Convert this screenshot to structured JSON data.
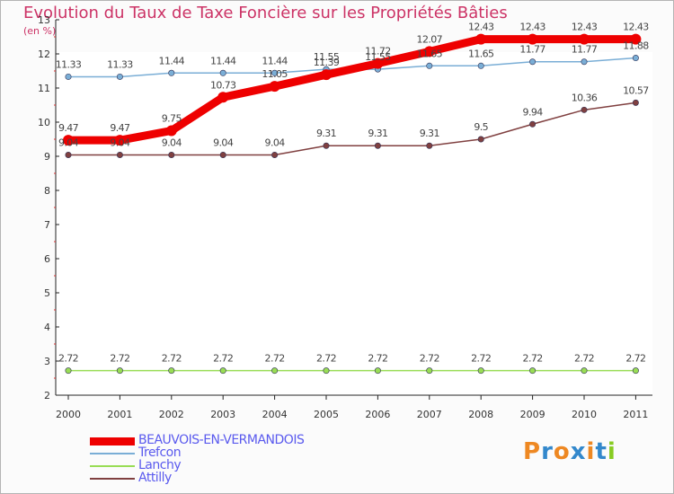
{
  "chart_data": {
    "type": "line",
    "title": "Evolution du Taux de Taxe Foncière sur les Propriétés Bâties",
    "ylabel": "(en %)",
    "x": [
      "2000",
      "2001",
      "2002",
      "2003",
      "2004",
      "2005",
      "2006",
      "2007",
      "2008",
      "2009",
      "2010",
      "2011"
    ],
    "ylim": [
      2,
      13
    ],
    "yticks": [
      2,
      3,
      4,
      5,
      6,
      7,
      8,
      9,
      10,
      11,
      12,
      13
    ],
    "grid": false,
    "legend_position": "bottom-left",
    "series": [
      {
        "name": "BEAUVOIS-EN-VERMANDOIS",
        "color": "#ee0000",
        "values": [
          9.47,
          9.47,
          9.75,
          10.73,
          11.05,
          11.39,
          11.72,
          12.07,
          12.43,
          12.43,
          12.43,
          12.43
        ],
        "labels": [
          "9.47",
          "9.47",
          "9.75",
          "10.73",
          "11.05",
          "11.39",
          "11.72",
          "12.07",
          "12.43",
          "12.43",
          "12.43",
          "12.43"
        ]
      },
      {
        "name": "Trefcon",
        "color": "#7aaed6",
        "values": [
          11.33,
          11.33,
          11.44,
          11.44,
          11.44,
          11.55,
          11.55,
          11.65,
          11.65,
          11.77,
          11.77,
          11.88
        ],
        "labels": [
          "11.33",
          "11.33",
          "11.44",
          "11.44",
          "11.44",
          "11.55",
          "11.55",
          "11.65",
          "11.65",
          "11.77",
          "11.77",
          "11.88"
        ]
      },
      {
        "name": "Lanchy",
        "color": "#99dd55",
        "values": [
          2.72,
          2.72,
          2.72,
          2.72,
          2.72,
          2.72,
          2.72,
          2.72,
          2.72,
          2.72,
          2.72,
          2.72
        ],
        "labels": [
          "2.72",
          "2.72",
          "2.72",
          "2.72",
          "2.72",
          "2.72",
          "2.72",
          "2.72",
          "2.72",
          "2.72",
          "2.72",
          "2.72"
        ]
      },
      {
        "name": "Attilly",
        "color": "#804040",
        "values": [
          9.04,
          9.04,
          9.04,
          9.04,
          9.04,
          9.31,
          9.31,
          9.31,
          9.5,
          9.94,
          10.36,
          10.57
        ],
        "labels": [
          "9.04",
          "9.04",
          "9.04",
          "9.04",
          "9.04",
          "9.31",
          "9.31",
          "9.31",
          "9.5",
          "9.94",
          "10.36",
          "10.57"
        ]
      }
    ]
  },
  "logo": {
    "letters": [
      {
        "char": "P",
        "color": "#ee8822"
      },
      {
        "char": "r",
        "color": "#3388cc"
      },
      {
        "char": "o",
        "color": "#ee8822"
      },
      {
        "char": "x",
        "color": "#3388cc"
      },
      {
        "char": "i",
        "color": "#ee8822"
      },
      {
        "char": "t",
        "color": "#3388cc"
      },
      {
        "char": "i",
        "color": "#88cc22"
      }
    ]
  }
}
